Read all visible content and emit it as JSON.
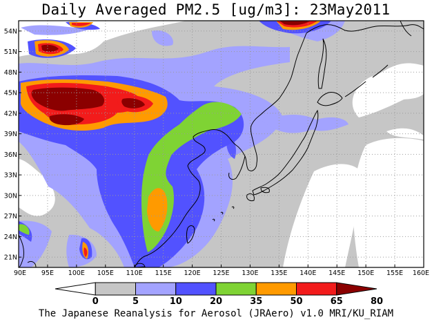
{
  "title": "Daily Averaged PM2.5 [ug/m3]: 23May2011",
  "footer": "The Japanese Reanalysis for Aerosol (JRAero) v1.0 MRI/KU_RIAM",
  "map": {
    "lon_range": [
      90,
      160
    ],
    "lat_range": [
      19.5,
      55.5
    ],
    "lon_ticks": [
      "90E",
      "95E",
      "100E",
      "105E",
      "110E",
      "115E",
      "120E",
      "125E",
      "130E",
      "135E",
      "140E",
      "145E",
      "150E",
      "155E",
      "160E"
    ],
    "lat_ticks": [
      "21N",
      "24N",
      "27N",
      "30N",
      "33N",
      "36N",
      "39N",
      "42N",
      "45N",
      "48N",
      "51N",
      "54N"
    ],
    "grid": true,
    "field": "PM2.5 concentration (ug/m3)"
  },
  "legend": {
    "levels": [
      "0",
      "5",
      "10",
      "20",
      "35",
      "50",
      "65",
      "80"
    ],
    "colors": [
      "#ffffff",
      "#c6c6c6",
      "#a3a3ff",
      "#5252ff",
      "#7fd334",
      "#ff9a00",
      "#f21b1b",
      "#8b0000"
    ]
  },
  "colors": {
    "c1": "#c6c6c6",
    "c2": "#a3a3ff",
    "c3": "#5252ff",
    "c4": "#7fd334",
    "c5": "#ff9a00",
    "c6": "#f21b1b",
    "c7": "#8b0000"
  }
}
